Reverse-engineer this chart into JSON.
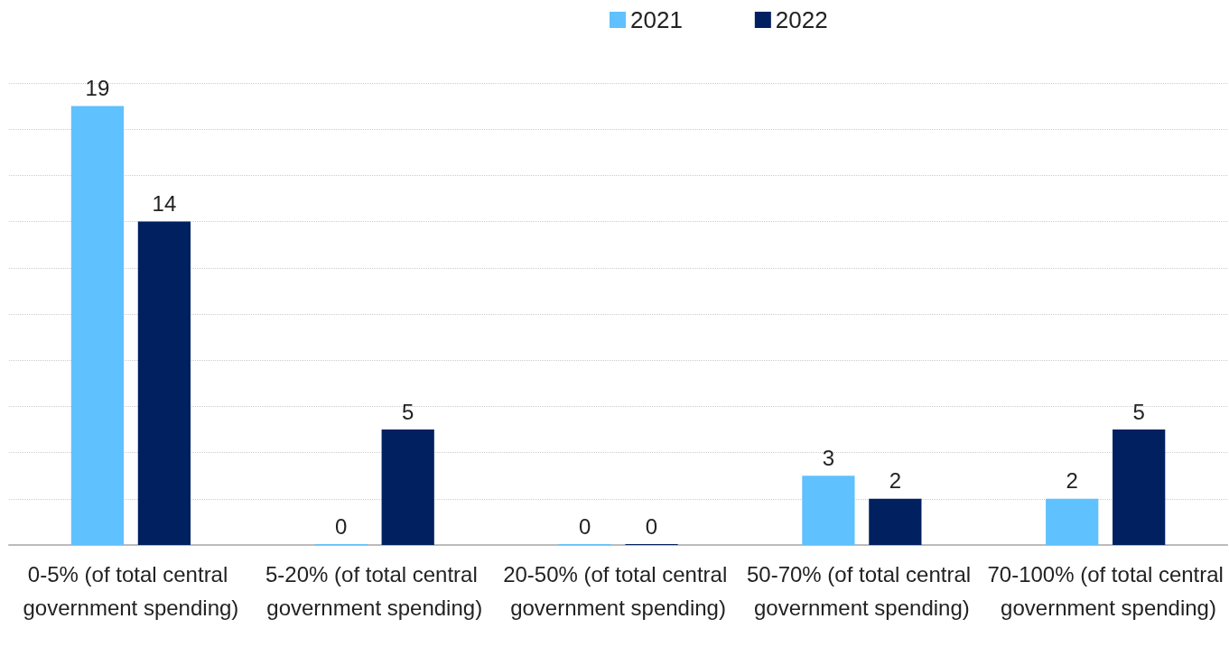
{
  "chart_data": {
    "type": "bar",
    "categories": [
      "0-5% (of total central government spending)",
      "5-20% (of total central government spending)",
      "20-50% (of total central government spending)",
      "50-70% (of total central government spending)",
      "70-100% (of total central government spending)"
    ],
    "series": [
      {
        "name": "2021",
        "color": "#5fc1fd",
        "values": [
          19,
          0,
          0,
          3,
          2
        ]
      },
      {
        "name": "2022",
        "color": "#002060",
        "values": [
          14,
          5,
          0,
          2,
          5
        ]
      }
    ],
    "ylim": [
      0,
      20
    ],
    "yticks": [
      {
        "value": 0,
        "label": null
      },
      {
        "value": 2,
        "label": null
      },
      {
        "value": 4,
        "label": null
      },
      {
        "value": 6,
        "label": null
      },
      {
        "value": 8,
        "label": null
      },
      {
        "value": 10,
        "label": null
      },
      {
        "value": 12,
        "label": null
      },
      {
        "value": 14,
        "label": null
      },
      {
        "value": 16,
        "label": null
      },
      {
        "value": 18,
        "label": null
      },
      {
        "value": 20,
        "label": null
      }
    ],
    "tick_labels": "x",
    "grid": "y",
    "legend": "top",
    "data_labels": true
  }
}
